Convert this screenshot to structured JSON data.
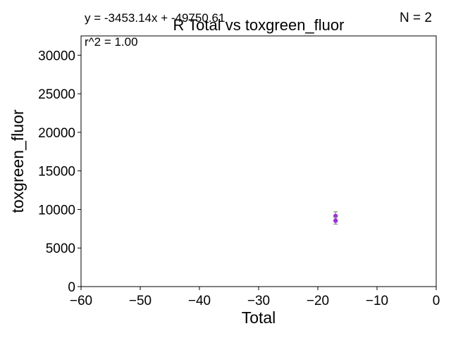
{
  "chart_data": {
    "type": "scatter",
    "title": "R Total vs toxgreen_fluor",
    "xlabel": "Total",
    "ylabel": "toxgreen_fluor",
    "xlim": [
      -60,
      0
    ],
    "ylim": [
      0,
      32500
    ],
    "x_ticks": [
      -60,
      -50,
      -40,
      -30,
      -20,
      -10,
      0
    ],
    "x_tick_labels": [
      "−60",
      "−50",
      "−40",
      "−30",
      "−20",
      "−10",
      "0"
    ],
    "y_ticks": [
      0,
      5000,
      10000,
      15000,
      20000,
      25000,
      30000
    ],
    "y_tick_labels": [
      "0",
      "5000",
      "10000",
      "15000",
      "20000",
      "25000",
      "30000"
    ],
    "grid": false,
    "annotations": {
      "equation": "y = -3453.14x + -49750.61",
      "r_squared": "r^2 = 1.00",
      "n": "N = 2"
    },
    "series": [
      {
        "color": "#9b30d9",
        "error_color": "#8a8a8a",
        "points": [
          {
            "x": -17,
            "y": 9150,
            "err": 550
          },
          {
            "x": -17,
            "y": 8550,
            "err": 450
          }
        ]
      }
    ]
  }
}
